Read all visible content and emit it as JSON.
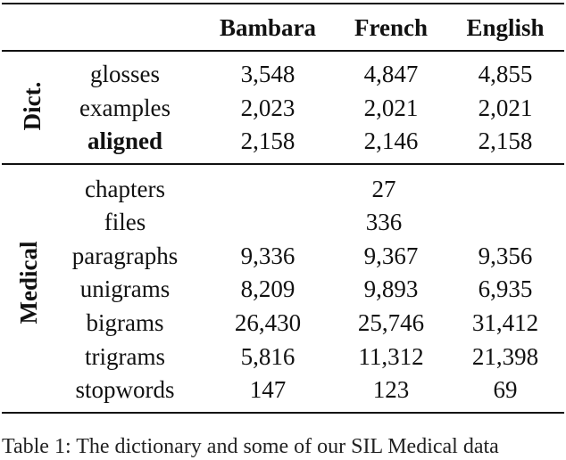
{
  "table": {
    "headers": [
      "",
      "Bambara",
      "French",
      "English"
    ],
    "groups": [
      {
        "label": "Dict.",
        "rows": [
          {
            "label": "glosses",
            "bambara": "3,548",
            "french": "4,847",
            "english": "4,855"
          },
          {
            "label": "examples",
            "bambara": "2,023",
            "french": "2,021",
            "english": "2,021"
          },
          {
            "label": "aligned",
            "bambara": "2,158",
            "french": "2,146",
            "english": "2,158",
            "bold": true
          }
        ]
      },
      {
        "label": "Medical",
        "rows": [
          {
            "label": "chapters",
            "span": "27"
          },
          {
            "label": "files",
            "span": "336"
          },
          {
            "label": "paragraphs",
            "bambara": "9,336",
            "french": "9,367",
            "english": "9,356"
          },
          {
            "label": "unigrams",
            "bambara": "8,209",
            "french": "9,893",
            "english": "6,935"
          },
          {
            "label": "bigrams",
            "bambara": "26,430",
            "french": "25,746",
            "english": "31,412"
          },
          {
            "label": "trigrams",
            "bambara": "5,816",
            "french": "11,312",
            "english": "21,398"
          },
          {
            "label": "stopwords",
            "bambara": "147",
            "french": "123",
            "english": "69"
          }
        ]
      }
    ]
  },
  "caption": "Table 1: The dictionary and some of our SIL Medical data"
}
